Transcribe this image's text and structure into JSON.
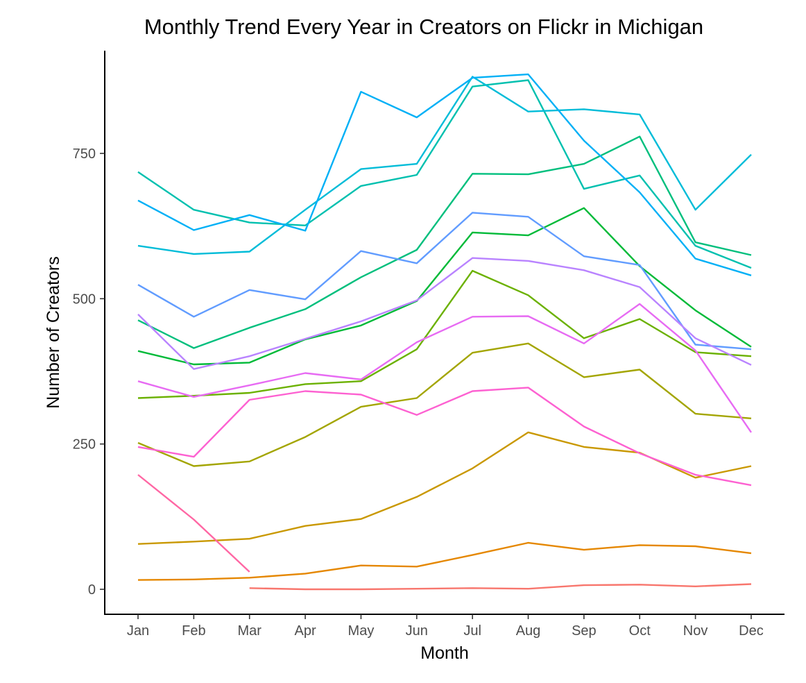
{
  "chart_data": {
    "type": "line",
    "title": "Monthly Trend Every Year in Creators on Flickr in Michigan",
    "xlabel": "Month",
    "ylabel": "Number of Creators",
    "categories": [
      "Jan",
      "Feb",
      "Mar",
      "Apr",
      "May",
      "Jun",
      "Jul",
      "Aug",
      "Sep",
      "Oct",
      "Nov",
      "Dec"
    ],
    "yticks": [
      0,
      250,
      500,
      750
    ],
    "ylim": [
      -42,
      925
    ],
    "grid": false,
    "legend": "none",
    "series": [
      {
        "color": "#F8766D",
        "values": [
          null,
          null,
          2,
          0,
          0,
          1,
          2,
          1,
          7,
          8,
          5,
          9
        ]
      },
      {
        "color": "#E58700",
        "values": [
          16,
          17,
          20,
          27,
          41,
          39,
          59,
          80,
          68,
          76,
          74,
          62
        ]
      },
      {
        "color": "#C99800",
        "values": [
          78,
          82,
          87,
          109,
          121,
          159,
          208,
          270,
          245,
          235,
          192,
          212
        ]
      },
      {
        "color": "#A3A500",
        "values": [
          252,
          212,
          220,
          262,
          314,
          329,
          407,
          423,
          365,
          378,
          302,
          294
        ]
      },
      {
        "color": "#6BB100",
        "values": [
          329,
          333,
          338,
          353,
          358,
          413,
          548,
          506,
          432,
          465,
          408,
          401
        ]
      },
      {
        "color": "#00BA38",
        "values": [
          410,
          387,
          390,
          430,
          454,
          496,
          614,
          609,
          656,
          556,
          480,
          417
        ]
      },
      {
        "color": "#00BF7D",
        "values": [
          463,
          415,
          450,
          482,
          537,
          584,
          715,
          714,
          732,
          779,
          597,
          575
        ]
      },
      {
        "color": "#00C0AF",
        "values": [
          718,
          653,
          631,
          626,
          694,
          713,
          865,
          876,
          689,
          712,
          591,
          553
        ]
      },
      {
        "color": "#00BCD8",
        "values": [
          591,
          577,
          581,
          653,
          723,
          732,
          882,
          822,
          826,
          817,
          653,
          748
        ]
      },
      {
        "color": "#00B0F6",
        "values": [
          669,
          618,
          644,
          617,
          856,
          812,
          880,
          886,
          772,
          683,
          569,
          540
        ]
      },
      {
        "color": "#619CFF",
        "values": [
          524,
          469,
          515,
          499,
          582,
          561,
          648,
          641,
          573,
          558,
          421,
          413
        ]
      },
      {
        "color": "#B983FF",
        "values": [
          473,
          379,
          401,
          431,
          461,
          497,
          570,
          565,
          549,
          520,
          432,
          386
        ]
      },
      {
        "color": "#E76BF3",
        "values": [
          358,
          331,
          351,
          372,
          361,
          425,
          469,
          470,
          423,
          491,
          411,
          270
        ]
      },
      {
        "color": "#FD61D1",
        "values": [
          245,
          228,
          326,
          341,
          335,
          300,
          341,
          347,
          280,
          234,
          197,
          179
        ]
      },
      {
        "color": "#FF67A4",
        "values": [
          197,
          120,
          30,
          null,
          null,
          null,
          null,
          null,
          null,
          null,
          null,
          null
        ]
      }
    ]
  }
}
